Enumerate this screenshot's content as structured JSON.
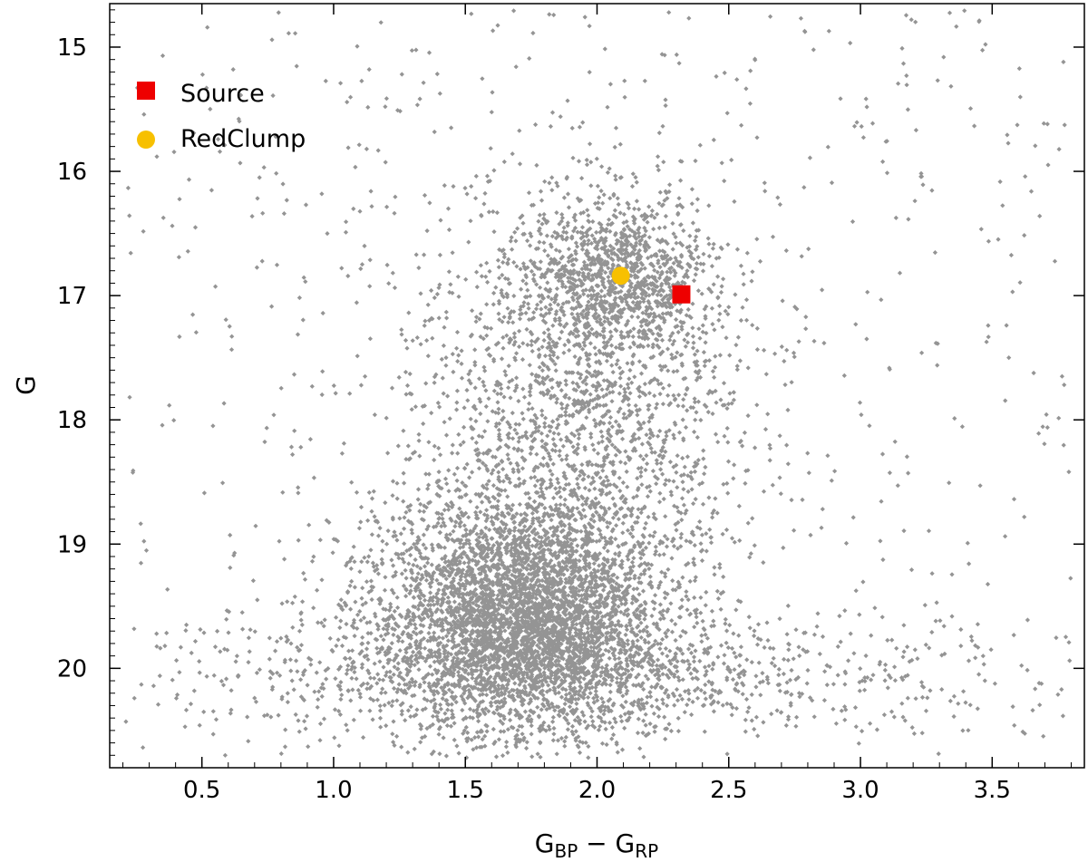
{
  "chart_data": {
    "type": "scatter",
    "title": "",
    "xlabel": {
      "main": "G",
      "sub1": "BP",
      "minus": " − ",
      "main2": "G",
      "sub2": "RP"
    },
    "ylabel": "G",
    "xlim": [
      0.15,
      3.85
    ],
    "ylim": [
      20.8,
      14.65
    ],
    "y_inverted": true,
    "xticks": [
      0.5,
      1.0,
      1.5,
      2.0,
      2.5,
      3.0,
      3.5
    ],
    "xtick_labels": [
      "0.5",
      "1.0",
      "1.5",
      "2.0",
      "2.5",
      "3.0",
      "3.5"
    ],
    "yticks": [
      15,
      16,
      17,
      18,
      19,
      20
    ],
    "ytick_labels": [
      "15",
      "16",
      "17",
      "18",
      "19",
      "20"
    ],
    "grid": false,
    "legend_position": "top-left",
    "background_stars": {
      "marker": "diamond",
      "color": "#000000",
      "approx_count": 12000,
      "distribution": [
        {
          "component": "main-sequence-turnoff",
          "x_center": 1.72,
          "y_center": 19.55,
          "x_spread": 0.28,
          "y_spread": 0.5
        },
        {
          "component": "red-clump",
          "x_center": 2.08,
          "y_center": 16.85,
          "x_spread": 0.17,
          "y_spread": 0.3
        },
        {
          "component": "giant-branch",
          "x_center": 1.95,
          "y_center": 17.8,
          "x_spread": 0.3,
          "y_spread": 0.8
        },
        {
          "component": "faint-tail",
          "x_center": 1.9,
          "y_center": 20.05,
          "x_spread": 0.75,
          "y_spread": 0.25
        },
        {
          "component": "field",
          "x_range": [
            0.2,
            3.8
          ],
          "y_range": [
            14.7,
            20.7
          ]
        }
      ]
    },
    "series": [
      {
        "name": "Source",
        "marker": "square",
        "color": "#ee0000",
        "x": [
          2.32
        ],
        "y": [
          16.99
        ]
      },
      {
        "name": "RedClump",
        "marker": "circle",
        "color": "#f7c000",
        "x": [
          2.09
        ],
        "y": [
          16.84
        ]
      }
    ]
  }
}
